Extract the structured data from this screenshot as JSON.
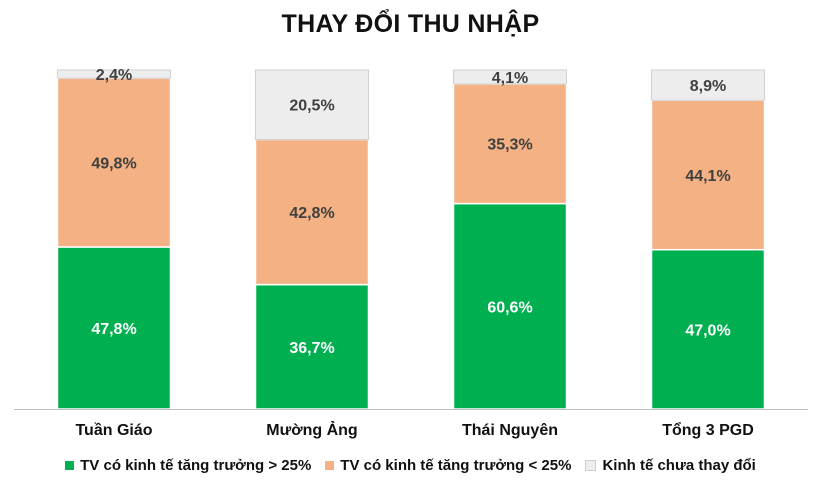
{
  "chart_data": {
    "type": "bar",
    "stacked": true,
    "percent_stacked": true,
    "title": "THAY ĐỔI THU NHẬP",
    "categories": [
      "Tuần Giáo",
      "Mường Ảng",
      "Thái Nguyên",
      "Tổng 3 PGD"
    ],
    "series": [
      {
        "name": "TV có kinh tế tăng trưởng > 25%",
        "color": "#00b050",
        "values": [
          47.8,
          36.7,
          60.6,
          47.0
        ],
        "labels": [
          "47,8%",
          "36,7%",
          "60,6%",
          "47,0%"
        ],
        "label_color": "#ffffff"
      },
      {
        "name": "TV có kinh tế tăng trưởng < 25%",
        "color": "#f4b183",
        "values": [
          49.8,
          42.8,
          35.3,
          44.1
        ],
        "labels": [
          "49,8%",
          "42,8%",
          "35,3%",
          "44,1%"
        ],
        "label_color": "#404040"
      },
      {
        "name": "Kinh tế chưa thay đổi",
        "color": "#ededed",
        "values": [
          2.4,
          20.5,
          4.1,
          8.9
        ],
        "labels": [
          "2,4%",
          "20,5%",
          "4,1%",
          "8,9%"
        ],
        "label_color": "#404040"
      }
    ],
    "ylim": [
      0,
      100
    ],
    "y_axis_visible": false,
    "grid": false,
    "legend_position": "bottom"
  }
}
